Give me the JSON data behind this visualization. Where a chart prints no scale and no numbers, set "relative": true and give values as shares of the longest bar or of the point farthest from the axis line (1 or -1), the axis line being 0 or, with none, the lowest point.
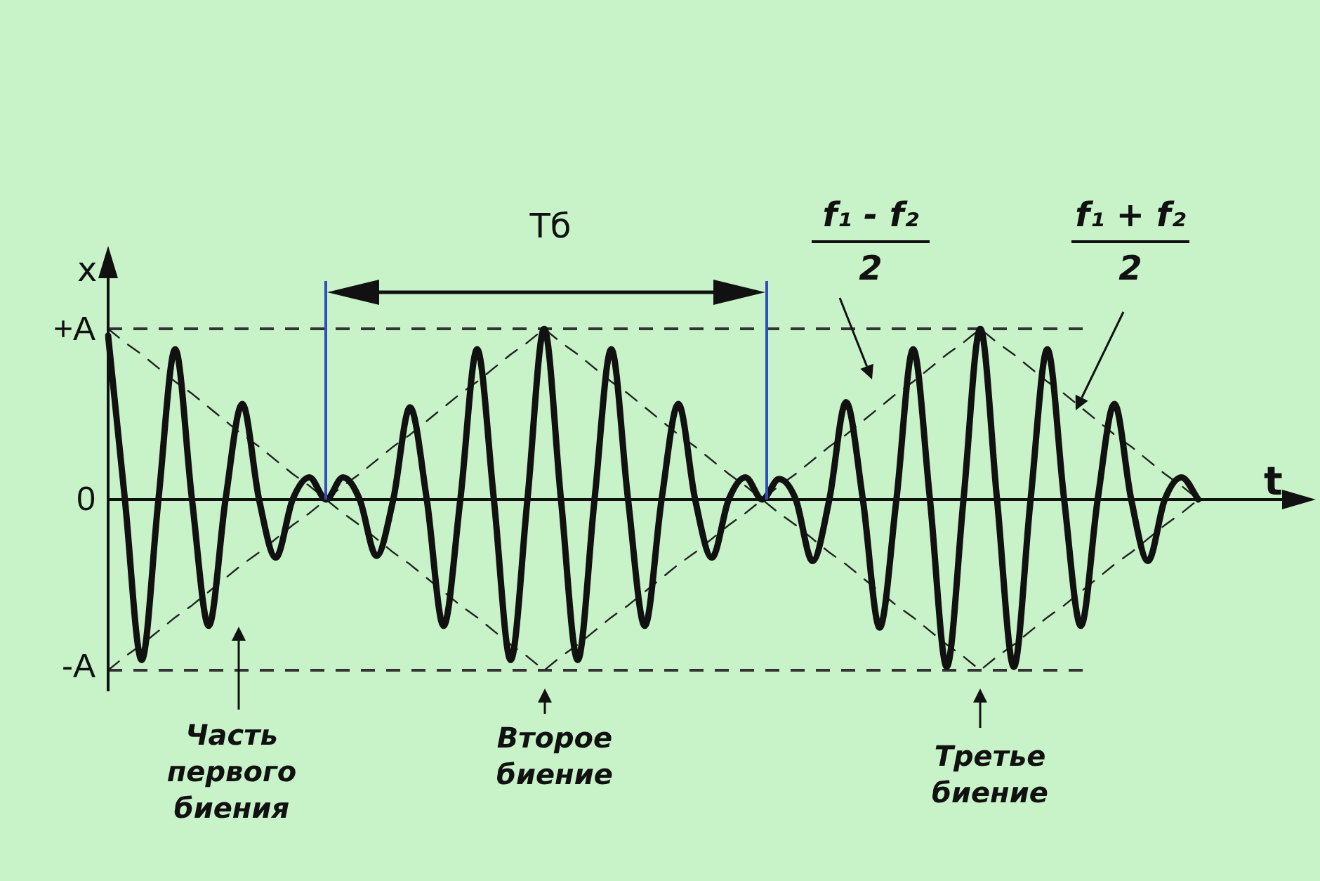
{
  "chart_data": {
    "type": "line",
    "xlabel": "t",
    "ylabel": "x",
    "categories": [
      null,
      null,
      null,
      null,
      null,
      null,
      null,
      null,
      null,
      null,
      null,
      null,
      null,
      null,
      null,
      null,
      null,
      null,
      null,
      null,
      null,
      null,
      null,
      null,
      null,
      null,
      null,
      null,
      null,
      null,
      null,
      null,
      null,
      null,
      null,
      null,
      null,
      null,
      null,
      null,
      null,
      null,
      null,
      null,
      null,
      null,
      null,
      null,
      null,
      null,
      null,
      null,
      null,
      null,
      null,
      null,
      null,
      null,
      null,
      null,
      null,
      null,
      null,
      null,
      null,
      null,
      null,
      null,
      null,
      null,
      null,
      null
    ],
    "series": [
      {
        "color": "#111111",
        "line_style": "solid",
        "values": [
          0.96,
          0,
          -0.94,
          0,
          0.88,
          0,
          -0.74,
          0,
          0.56,
          0,
          -0.34,
          0,
          0.13,
          0,
          0.13,
          0,
          -0.33,
          0,
          0.54,
          0,
          -0.74,
          0,
          0.88,
          0,
          -0.94,
          0,
          1.0,
          0,
          -0.94,
          0,
          0.88,
          0,
          -0.74,
          0,
          0.56,
          0,
          -0.34,
          0,
          0.13,
          0,
          0.12,
          0,
          -0.36,
          0,
          0.57,
          0,
          -0.75,
          0,
          0.88,
          0,
          -0.98,
          0,
          1.0,
          0,
          -0.98,
          0,
          0.88,
          0,
          -0.74,
          0,
          0.56,
          0,
          -0.36,
          0,
          0.13,
          0,
          null,
          null,
          null,
          null,
          null,
          null
        ]
      },
      {
        "color": "#222222",
        "line_style": "dashed",
        "values": [
          1,
          0.92,
          0.85,
          0.77,
          0.69,
          0.62,
          0.54,
          0.46,
          0.38,
          0.31,
          0.23,
          0.15,
          0.08,
          0,
          -0.08,
          -0.15,
          -0.23,
          -0.31,
          -0.38,
          -0.46,
          -0.54,
          -0.62,
          -0.69,
          -0.77,
          -0.85,
          -0.92,
          -1,
          -0.92,
          -0.85,
          -0.77,
          -0.69,
          -0.62,
          -0.54,
          -0.46,
          -0.38,
          -0.31,
          -0.23,
          -0.15,
          -0.08,
          0,
          0.08,
          0.15,
          0.23,
          0.31,
          0.38,
          0.46,
          0.54,
          0.62,
          0.69,
          0.77,
          0.85,
          0.92,
          1,
          0.92,
          0.85,
          0.77,
          0.69,
          0.62,
          0.54,
          0.46,
          0.38,
          0.31,
          0.23,
          0.15,
          0.08,
          0,
          null,
          null,
          null,
          null,
          null,
          null
        ]
      },
      {
        "color": "#222222",
        "line_style": "dashed",
        "values": [
          -1,
          -0.92,
          -0.85,
          -0.77,
          -0.69,
          -0.62,
          -0.54,
          -0.46,
          -0.38,
          -0.31,
          -0.23,
          -0.15,
          -0.08,
          0,
          0.08,
          0.15,
          0.23,
          0.31,
          0.38,
          0.46,
          0.54,
          0.62,
          0.69,
          0.77,
          0.85,
          0.92,
          1,
          0.92,
          0.85,
          0.77,
          0.69,
          0.62,
          0.54,
          0.46,
          0.38,
          0.31,
          0.23,
          0.15,
          0.08,
          0,
          -0.08,
          -0.15,
          -0.23,
          -0.31,
          -0.38,
          -0.46,
          -0.54,
          -0.62,
          -0.69,
          -0.77,
          -0.85,
          -0.92,
          -1,
          -0.92,
          -0.85,
          -0.77,
          -0.69,
          -0.62,
          -0.54,
          -0.46,
          -0.38,
          -0.31,
          -0.23,
          -0.15,
          -0.08,
          0,
          null,
          null,
          null,
          null,
          null,
          null
        ]
      }
    ],
    "relative": true,
    "grid": false,
    "legend": false,
    "marker": "none",
    "ref_lines": [
      {
        "axis": "y",
        "value": 1,
        "line_style": "dashed",
        "color": "#333333"
      },
      {
        "axis": "y",
        "value": -1,
        "line_style": "dashed",
        "color": "#333333"
      }
    ],
    "annotations": [
      "+A",
      "0",
      "-A",
      "Tб",
      "f₁ - f₂",
      "2",
      "f₁ + f₂",
      "2",
      "Часть первого биения",
      "Второе биение",
      "Третье биение"
    ]
  }
}
